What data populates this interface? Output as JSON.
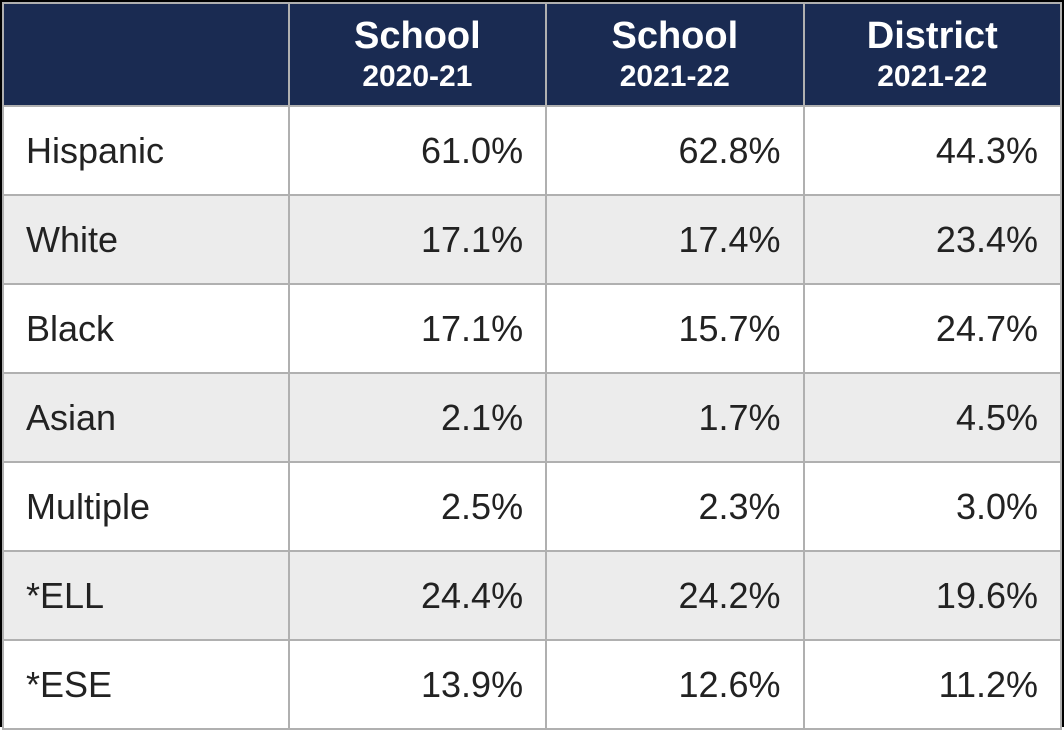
{
  "table": {
    "type": "table",
    "header_bg": "#1a2b52",
    "header_text_color": "#ffffff",
    "row_colors": [
      "#ffffff",
      "#ececec"
    ],
    "border_color": "#b0b0b0",
    "outer_border_color": "#000000",
    "font_family": "Arial",
    "header_main_fontsize": 38,
    "header_sub_fontsize": 30,
    "cell_fontsize": 36,
    "columns": [
      {
        "main": "",
        "sub": ""
      },
      {
        "main": "School",
        "sub": "2020-21"
      },
      {
        "main": "School",
        "sub": "2021-22"
      },
      {
        "main": "District",
        "sub": "2021-22"
      }
    ],
    "rows": [
      {
        "label": "Hispanic",
        "values": [
          "61.0%",
          "62.8%",
          "44.3%"
        ]
      },
      {
        "label": "White",
        "values": [
          "17.1%",
          "17.4%",
          "23.4%"
        ]
      },
      {
        "label": "Black",
        "values": [
          "17.1%",
          "15.7%",
          "24.7%"
        ]
      },
      {
        "label": "Asian",
        "values": [
          "2.1%",
          "1.7%",
          "4.5%"
        ]
      },
      {
        "label": "Multiple",
        "values": [
          "2.5%",
          "2.3%",
          "3.0%"
        ]
      },
      {
        "label": "*ELL",
        "values": [
          "24.4%",
          "24.2%",
          "19.6%"
        ]
      },
      {
        "label": "*ESE",
        "values": [
          "13.9%",
          "12.6%",
          "11.2%"
        ]
      }
    ]
  }
}
